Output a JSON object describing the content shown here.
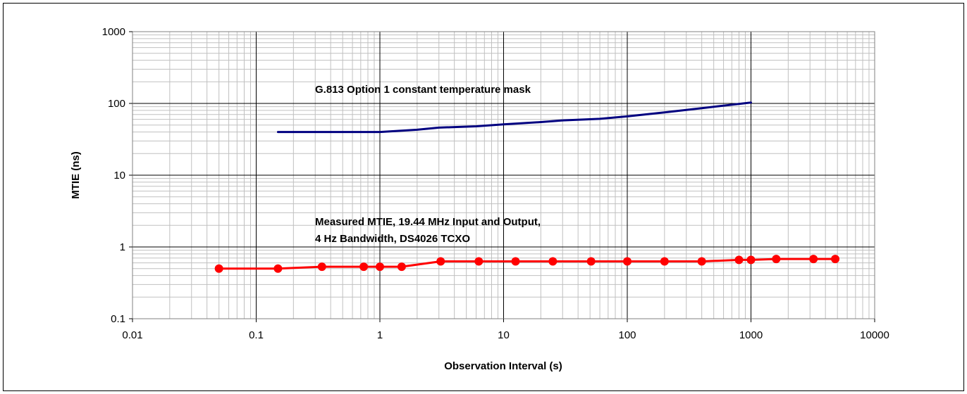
{
  "chart_data": {
    "type": "line",
    "x_scale": "log",
    "y_scale": "log",
    "xlabel": "Observation Interval (s)",
    "ylabel": "MTIE (ns)",
    "xlim": [
      0.01,
      10000
    ],
    "ylim": [
      0.1,
      1000
    ],
    "grid": true,
    "x_ticks": [
      "0.01",
      "0.1",
      "1",
      "10",
      "100",
      "1000",
      "10000"
    ],
    "y_ticks": [
      "0.1",
      "1",
      "10",
      "100",
      "1000"
    ],
    "annotations": {
      "mask": "G.813 Option 1 constant temperature mask",
      "measured_line1": "Measured MTIE, 19.44 MHz Input and Output,",
      "measured_line2": "4 Hz Bandwidth, DS4026 TCXO"
    },
    "series": [
      {
        "color": "#000080",
        "markers": false,
        "x": [
          0.15,
          0.3,
          0.6,
          1,
          2,
          3,
          6,
          10,
          20,
          30,
          60,
          100,
          200,
          400,
          1000
        ],
        "y": [
          40,
          40,
          40,
          40,
          43,
          46,
          48,
          51,
          55,
          58,
          61,
          66,
          75,
          86,
          103
        ]
      },
      {
        "color": "#ff0000",
        "markers": true,
        "x": [
          0.05,
          0.15,
          0.34,
          0.74,
          1,
          1.5,
          3.1,
          6.3,
          12.5,
          25,
          51,
          100,
          200,
          400,
          800,
          1000,
          1600,
          3200,
          4800
        ],
        "y": [
          0.5,
          0.5,
          0.53,
          0.53,
          0.53,
          0.53,
          0.63,
          0.63,
          0.63,
          0.63,
          0.63,
          0.63,
          0.63,
          0.63,
          0.66,
          0.66,
          0.68,
          0.68,
          0.68
        ]
      }
    ]
  }
}
